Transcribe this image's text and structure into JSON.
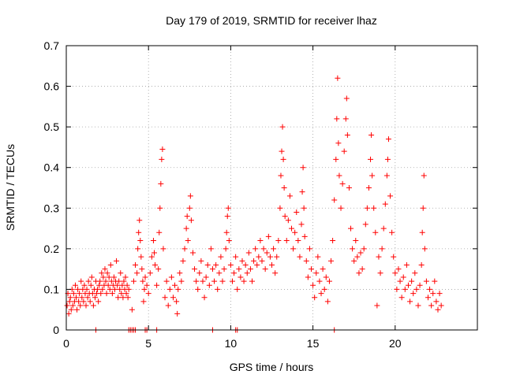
{
  "chart_data": {
    "type": "scatter",
    "title": "Day 179 of 2019, SRMTID for receiver lhaz",
    "xlabel": "GPS time / hours",
    "ylabel": "SRMTID / TECUs",
    "xlim": [
      0,
      25
    ],
    "ylim": [
      0,
      0.7
    ],
    "xticks": [
      0,
      5,
      10,
      15,
      20
    ],
    "yticks": [
      0,
      0.1,
      0.2,
      0.3,
      0.4,
      0.5,
      0.6,
      0.7
    ],
    "xtick_labels": [
      "0",
      "5",
      "10",
      "15",
      "20"
    ],
    "ytick_labels": [
      "0",
      "0.1",
      "0.2",
      "0.3",
      "0.4",
      "0.5",
      "0.6",
      "0.7"
    ],
    "grid": true,
    "marker": "+",
    "color": "#ff0000",
    "series": [
      {
        "name": "SRMTID",
        "points": [
          [
            0.05,
            0.06
          ],
          [
            0.1,
            0.09
          ],
          [
            0.15,
            0.04
          ],
          [
            0.2,
            0.07
          ],
          [
            0.25,
            0.08
          ],
          [
            0.3,
            0.05
          ],
          [
            0.35,
            0.1
          ],
          [
            0.4,
            0.06
          ],
          [
            0.45,
            0.09
          ],
          [
            0.5,
            0.07
          ],
          [
            0.55,
            0.11
          ],
          [
            0.6,
            0.08
          ],
          [
            0.65,
            0.05
          ],
          [
            0.7,
            0.1
          ],
          [
            0.75,
            0.07
          ],
          [
            0.8,
            0.09
          ],
          [
            0.85,
            0.06
          ],
          [
            0.9,
            0.12
          ],
          [
            0.95,
            0.08
          ],
          [
            1.0,
            0.1
          ],
          [
            1.05,
            0.07
          ],
          [
            1.1,
            0.11
          ],
          [
            1.15,
            0.09
          ],
          [
            1.2,
            0.06
          ],
          [
            1.25,
            0.1
          ],
          [
            1.3,
            0.08
          ],
          [
            1.35,
            0.12
          ],
          [
            1.4,
            0.09
          ],
          [
            1.45,
            0.07
          ],
          [
            1.5,
            0.11
          ],
          [
            1.55,
            0.13
          ],
          [
            1.6,
            0.09
          ],
          [
            1.65,
            0.06
          ],
          [
            1.7,
            0.1
          ],
          [
            1.75,
            0.08
          ],
          [
            1.8,
            0.12
          ],
          [
            1.85,
            0.09
          ],
          [
            1.9,
            0.1
          ],
          [
            1.95,
            0.07
          ],
          [
            2.0,
            0.11
          ],
          [
            2.05,
            0.12
          ],
          [
            2.1,
            0.09
          ],
          [
            2.15,
            0.14
          ],
          [
            2.2,
            0.1
          ],
          [
            2.25,
            0.13
          ],
          [
            2.3,
            0.11
          ],
          [
            2.35,
            0.15
          ],
          [
            2.4,
            0.12
          ],
          [
            2.45,
            0.09
          ],
          [
            2.5,
            0.14
          ],
          [
            2.55,
            0.11
          ],
          [
            2.6,
            0.13
          ],
          [
            2.65,
            0.1
          ],
          [
            2.7,
            0.16
          ],
          [
            2.75,
            0.12
          ],
          [
            2.8,
            0.09
          ],
          [
            2.85,
            0.11
          ],
          [
            2.9,
            0.13
          ],
          [
            2.95,
            0.1
          ],
          [
            3.0,
            0.12
          ],
          [
            3.05,
            0.17
          ],
          [
            3.1,
            0.11
          ],
          [
            3.15,
            0.08
          ],
          [
            3.2,
            0.12
          ],
          [
            3.25,
            0.1
          ],
          [
            3.3,
            0.14
          ],
          [
            3.35,
            0.09
          ],
          [
            3.4,
            0.11
          ],
          [
            3.45,
            0.08
          ],
          [
            3.5,
            0.12
          ],
          [
            3.55,
            0.1
          ],
          [
            3.6,
            0.13
          ],
          [
            3.65,
            0.09
          ],
          [
            3.7,
            0.11
          ],
          [
            3.75,
            0.08
          ],
          [
            3.8,
            0.1
          ],
          [
            4.0,
            0.05
          ],
          [
            4.1,
            0.12
          ],
          [
            4.2,
            0.16
          ],
          [
            4.3,
            0.14
          ],
          [
            4.35,
            0.2
          ],
          [
            4.4,
            0.24
          ],
          [
            4.45,
            0.27
          ],
          [
            4.5,
            0.22
          ],
          [
            4.55,
            0.18
          ],
          [
            4.6,
            0.15
          ],
          [
            4.65,
            0.12
          ],
          [
            4.7,
            0.07
          ],
          [
            4.75,
            0.1
          ],
          [
            4.8,
            0.13
          ],
          [
            4.9,
            0.11
          ],
          [
            5.0,
            0.09
          ],
          [
            5.1,
            0.14
          ],
          [
            5.2,
            0.18
          ],
          [
            5.3,
            0.22
          ],
          [
            5.35,
            0.19
          ],
          [
            5.4,
            0.16
          ],
          [
            5.5,
            0.11
          ],
          [
            5.6,
            0.15
          ],
          [
            5.65,
            0.24
          ],
          [
            5.7,
            0.3
          ],
          [
            5.75,
            0.36
          ],
          [
            5.8,
            0.42
          ],
          [
            5.85,
            0.445
          ],
          [
            5.9,
            0.2
          ],
          [
            6.0,
            0.08
          ],
          [
            6.1,
            0.12
          ],
          [
            6.2,
            0.06
          ],
          [
            6.3,
            0.1
          ],
          [
            6.4,
            0.13
          ],
          [
            6.5,
            0.08
          ],
          [
            6.6,
            0.11
          ],
          [
            6.7,
            0.07
          ],
          [
            6.75,
            0.04
          ],
          [
            6.8,
            0.1
          ],
          [
            6.9,
            0.14
          ],
          [
            7.0,
            0.12
          ],
          [
            7.1,
            0.17
          ],
          [
            7.2,
            0.2
          ],
          [
            7.3,
            0.25
          ],
          [
            7.35,
            0.28
          ],
          [
            7.4,
            0.22
          ],
          [
            7.5,
            0.3
          ],
          [
            7.55,
            0.33
          ],
          [
            7.6,
            0.27
          ],
          [
            7.7,
            0.19
          ],
          [
            7.8,
            0.15
          ],
          [
            7.9,
            0.12
          ],
          [
            8.0,
            0.1
          ],
          [
            8.1,
            0.14
          ],
          [
            8.2,
            0.17
          ],
          [
            8.3,
            0.12
          ],
          [
            8.4,
            0.08
          ],
          [
            8.5,
            0.13
          ],
          [
            8.6,
            0.16
          ],
          [
            8.7,
            0.11
          ],
          [
            8.8,
            0.2
          ],
          [
            8.9,
            0.15
          ],
          [
            9.0,
            0.12
          ],
          [
            9.1,
            0.16
          ],
          [
            9.2,
            0.1
          ],
          [
            9.3,
            0.14
          ],
          [
            9.4,
            0.18
          ],
          [
            9.5,
            0.12
          ],
          [
            9.6,
            0.15
          ],
          [
            9.7,
            0.2
          ],
          [
            9.75,
            0.24
          ],
          [
            9.8,
            0.28
          ],
          [
            9.85,
            0.3
          ],
          [
            9.9,
            0.22
          ],
          [
            10.0,
            0.16
          ],
          [
            10.1,
            0.12
          ],
          [
            10.2,
            0.14
          ],
          [
            10.3,
            0.18
          ],
          [
            10.4,
            0.1
          ],
          [
            10.5,
            0.15
          ],
          [
            10.6,
            0.13
          ],
          [
            10.7,
            0.17
          ],
          [
            10.8,
            0.12
          ],
          [
            10.9,
            0.16
          ],
          [
            11.0,
            0.14
          ],
          [
            11.1,
            0.19
          ],
          [
            11.2,
            0.15
          ],
          [
            11.3,
            0.12
          ],
          [
            11.4,
            0.17
          ],
          [
            11.5,
            0.2
          ],
          [
            11.6,
            0.16
          ],
          [
            11.7,
            0.18
          ],
          [
            11.8,
            0.22
          ],
          [
            11.9,
            0.17
          ],
          [
            12.0,
            0.2
          ],
          [
            12.1,
            0.15
          ],
          [
            12.2,
            0.19
          ],
          [
            12.3,
            0.23
          ],
          [
            12.4,
            0.18
          ],
          [
            12.5,
            0.16
          ],
          [
            12.6,
            0.2
          ],
          [
            12.7,
            0.14
          ],
          [
            12.8,
            0.18
          ],
          [
            12.9,
            0.22
          ],
          [
            13.0,
            0.3
          ],
          [
            13.05,
            0.38
          ],
          [
            13.1,
            0.44
          ],
          [
            13.15,
            0.5
          ],
          [
            13.2,
            0.42
          ],
          [
            13.25,
            0.35
          ],
          [
            13.3,
            0.28
          ],
          [
            13.4,
            0.22
          ],
          [
            13.5,
            0.27
          ],
          [
            13.6,
            0.33
          ],
          [
            13.7,
            0.25
          ],
          [
            13.8,
            0.2
          ],
          [
            13.9,
            0.24
          ],
          [
            14.0,
            0.29
          ],
          [
            14.1,
            0.22
          ],
          [
            14.2,
            0.18
          ],
          [
            14.3,
            0.26
          ],
          [
            14.35,
            0.34
          ],
          [
            14.4,
            0.4
          ],
          [
            14.45,
            0.3
          ],
          [
            14.5,
            0.23
          ],
          [
            14.6,
            0.17
          ],
          [
            14.7,
            0.13
          ],
          [
            14.8,
            0.2
          ],
          [
            14.9,
            0.15
          ],
          [
            15.0,
            0.11
          ],
          [
            15.1,
            0.08
          ],
          [
            15.2,
            0.14
          ],
          [
            15.3,
            0.18
          ],
          [
            15.4,
            0.12
          ],
          [
            15.5,
            0.09
          ],
          [
            15.6,
            0.15
          ],
          [
            15.7,
            0.1
          ],
          [
            15.8,
            0.13
          ],
          [
            15.9,
            0.07
          ],
          [
            16.0,
            0.12
          ],
          [
            16.1,
            0.17
          ],
          [
            16.2,
            0.22
          ],
          [
            16.3,
            0.32
          ],
          [
            16.4,
            0.42
          ],
          [
            16.45,
            0.52
          ],
          [
            16.5,
            0.62
          ],
          [
            16.55,
            0.46
          ],
          [
            16.6,
            0.38
          ],
          [
            16.7,
            0.3
          ],
          [
            16.8,
            0.36
          ],
          [
            16.9,
            0.44
          ],
          [
            17.0,
            0.52
          ],
          [
            17.05,
            0.57
          ],
          [
            17.1,
            0.48
          ],
          [
            17.2,
            0.35
          ],
          [
            17.3,
            0.25
          ],
          [
            17.4,
            0.2
          ],
          [
            17.5,
            0.17
          ],
          [
            17.6,
            0.22
          ],
          [
            17.7,
            0.18
          ],
          [
            17.8,
            0.14
          ],
          [
            17.9,
            0.19
          ],
          [
            18.0,
            0.15
          ],
          [
            18.1,
            0.2
          ],
          [
            18.2,
            0.26
          ],
          [
            18.3,
            0.3
          ],
          [
            18.4,
            0.35
          ],
          [
            18.5,
            0.42
          ],
          [
            18.55,
            0.48
          ],
          [
            18.6,
            0.38
          ],
          [
            18.7,
            0.3
          ],
          [
            18.8,
            0.24
          ],
          [
            18.9,
            0.06
          ],
          [
            19.0,
            0.18
          ],
          [
            19.1,
            0.14
          ],
          [
            19.2,
            0.2
          ],
          [
            19.3,
            0.25
          ],
          [
            19.4,
            0.31
          ],
          [
            19.5,
            0.38
          ],
          [
            19.55,
            0.42
          ],
          [
            19.6,
            0.47
          ],
          [
            19.7,
            0.33
          ],
          [
            19.8,
            0.24
          ],
          [
            19.9,
            0.18
          ],
          [
            20.0,
            0.14
          ],
          [
            20.1,
            0.1
          ],
          [
            20.2,
            0.15
          ],
          [
            20.3,
            0.12
          ],
          [
            20.4,
            0.08
          ],
          [
            20.5,
            0.13
          ],
          [
            20.6,
            0.1
          ],
          [
            20.7,
            0.16
          ],
          [
            20.8,
            0.11
          ],
          [
            20.9,
            0.07
          ],
          [
            21.0,
            0.12
          ],
          [
            21.1,
            0.09
          ],
          [
            21.2,
            0.14
          ],
          [
            21.3,
            0.1
          ],
          [
            21.4,
            0.06
          ],
          [
            21.5,
            0.11
          ],
          [
            21.6,
            0.16
          ],
          [
            21.65,
            0.24
          ],
          [
            21.7,
            0.3
          ],
          [
            21.75,
            0.38
          ],
          [
            21.8,
            0.2
          ],
          [
            21.9,
            0.12
          ],
          [
            22.0,
            0.08
          ],
          [
            22.1,
            0.1
          ],
          [
            22.2,
            0.06
          ],
          [
            22.3,
            0.09
          ],
          [
            22.4,
            0.12
          ],
          [
            22.5,
            0.07
          ],
          [
            22.6,
            0.05
          ],
          [
            22.7,
            0.09
          ],
          [
            22.8,
            0.06
          ]
        ]
      }
    ],
    "zero_points_x": [
      1.8,
      3.8,
      3.9,
      4.0,
      4.1,
      4.2,
      4.8,
      4.9,
      5.5,
      8.9,
      10.3,
      10.4,
      16.3
    ]
  }
}
